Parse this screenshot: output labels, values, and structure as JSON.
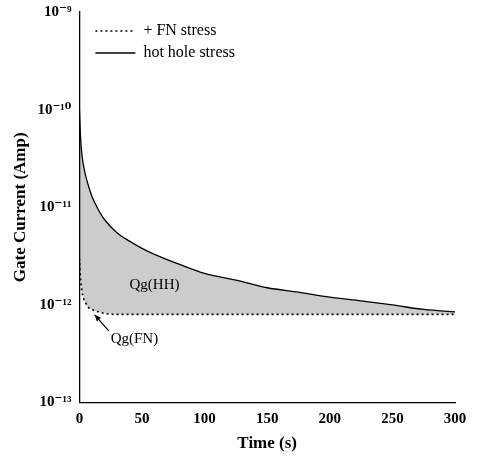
{
  "chart_data": {
    "type": "line",
    "x_label": "Time (s)",
    "y_label": "Gate Current (Amp)",
    "log": "y",
    "grid": false,
    "legend": "upper left",
    "x": [
      0,
      1,
      2,
      3,
      5,
      7,
      10,
      15,
      20,
      30,
      40,
      50,
      60,
      80,
      100,
      125,
      150,
      175,
      200,
      225,
      250,
      275,
      300
    ],
    "series": [
      {
        "name": "+ FN stress",
        "color": "#000000",
        "line_style": "dotted",
        "values": [
          3e-12,
          1.8e-12,
          1.4e-12,
          1.2e-12,
          1.05e-12,
          9.5e-13,
          9e-13,
          8.5e-13,
          8.2e-13,
          8e-13,
          8e-13,
          8e-13,
          8e-13,
          8e-13,
          8e-13,
          8e-13,
          8e-13,
          8e-13,
          8e-13,
          8e-13,
          8e-13,
          8e-13,
          8e-13
        ]
      },
      {
        "name": "hot hole stress",
        "color": "#000000",
        "line_style": "solid",
        "values": [
          1e-10,
          5e-11,
          3.5e-11,
          2.8e-11,
          2.1e-11,
          1.7e-11,
          1.3e-11,
          9.5e-12,
          7.5e-12,
          5.5e-12,
          4.5e-12,
          3.8e-12,
          3.3e-12,
          2.6e-12,
          2.1e-12,
          1.8e-12,
          1.5e-12,
          1.35e-12,
          1.2e-12,
          1.1e-12,
          1e-12,
          9e-13,
          8.5e-13
        ]
      }
    ],
    "xlim": [
      0,
      300
    ],
    "xticks": [
      0,
      50,
      100,
      150,
      200,
      250,
      300
    ],
    "ylim": [
      1e-13,
      1e-09
    ],
    "yticks": [
      {
        "value": 1e-13,
        "label": "10⁻¹³"
      },
      {
        "value": 1e-12,
        "label": "10⁻¹²"
      },
      {
        "value": 1e-11,
        "label": "10⁻¹¹"
      },
      {
        "value": 1e-10,
        "label": "10⁻¹⁰"
      },
      {
        "value": 1e-09,
        "label": "10⁻⁹"
      }
    ],
    "annotations": [
      {
        "text": "Qg(HH)",
        "x": 40,
        "y": 1.6e-12
      },
      {
        "text": "Qg(FN)",
        "x": 25,
        "y": 4.5e-13
      }
    ]
  }
}
